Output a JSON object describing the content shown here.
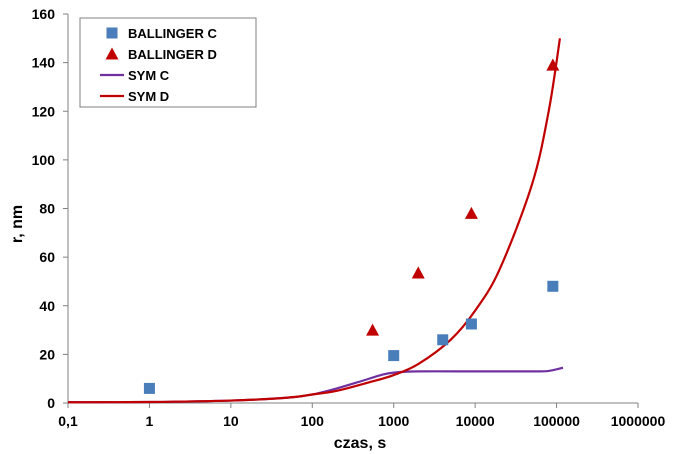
{
  "chart_data": {
    "type": "scatter",
    "title": "",
    "xlabel": "czas, s",
    "ylabel": "r, nm",
    "x_scale": "log",
    "xlim": [
      0.1,
      1000000
    ],
    "ylim": [
      0,
      160
    ],
    "x_tick_labels": [
      "0,1",
      "1",
      "10",
      "100",
      "1000",
      "10000",
      "100000",
      "1000000"
    ],
    "y_tick_labels": [
      "0",
      "20",
      "40",
      "60",
      "80",
      "100",
      "120",
      "140",
      "160"
    ],
    "grid": false,
    "legend_position": "top-left",
    "series": [
      {
        "name": "BALLINGER C",
        "kind": "marker",
        "marker": "square",
        "color": "#4a7ebb",
        "points": [
          [
            1,
            6
          ],
          [
            1000,
            19.5
          ],
          [
            4000,
            26
          ],
          [
            9000,
            32.5
          ],
          [
            90000,
            48
          ]
        ]
      },
      {
        "name": "BALLINGER D",
        "kind": "marker",
        "marker": "triangle",
        "color": "#c00000",
        "points": [
          [
            550,
            30
          ],
          [
            2000,
            53.5
          ],
          [
            9000,
            78
          ],
          [
            90000,
            139
          ]
        ]
      },
      {
        "name": "SYM C",
        "kind": "line",
        "color": "#7030a0",
        "points": [
          [
            0.1,
            0.3
          ],
          [
            1,
            0.4
          ],
          [
            10,
            1
          ],
          [
            50,
            2.2
          ],
          [
            100,
            3.5
          ],
          [
            200,
            6
          ],
          [
            400,
            9
          ],
          [
            700,
            11.5
          ],
          [
            1000,
            12.5
          ],
          [
            2000,
            13
          ],
          [
            10000,
            13
          ],
          [
            50000,
            13
          ],
          [
            80000,
            13.2
          ],
          [
            120000,
            14.5
          ]
        ]
      },
      {
        "name": "SYM D",
        "kind": "line",
        "color": "#c00000",
        "points": [
          [
            0.1,
            0.3
          ],
          [
            1,
            0.4
          ],
          [
            10,
            1
          ],
          [
            50,
            2.2
          ],
          [
            100,
            3.5
          ],
          [
            200,
            5
          ],
          [
            500,
            8.5
          ],
          [
            1000,
            11.5
          ],
          [
            2000,
            16
          ],
          [
            5000,
            26
          ],
          [
            10000,
            38
          ],
          [
            20000,
            55
          ],
          [
            50000,
            90
          ],
          [
            80000,
            120
          ],
          [
            110000,
            150
          ]
        ]
      }
    ]
  }
}
